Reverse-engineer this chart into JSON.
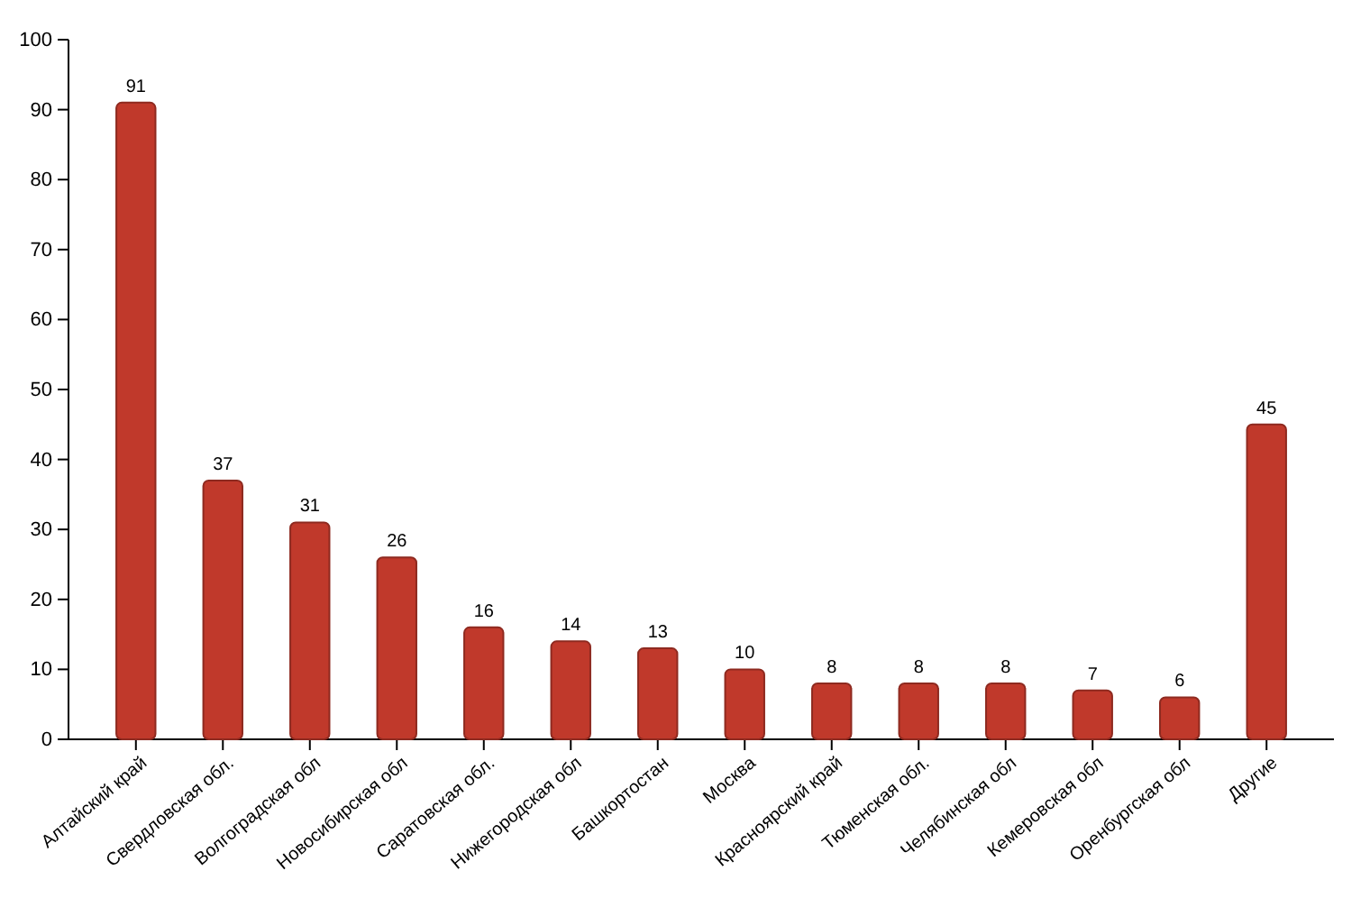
{
  "chart_data": {
    "type": "bar",
    "categories": [
      "Алтайский край",
      "Свердловская обл.",
      "Волгоградская обл",
      "Новосибирская обл",
      "Саратовская обл.",
      "Нижегородская обл",
      "Башкортостан",
      "Москва",
      "Красноярский край",
      "Тюменская обл.",
      "Челябинская обл",
      "Кемеровская обл",
      "Оренбургская обл",
      "Другие"
    ],
    "values": [
      91,
      37,
      31,
      26,
      16,
      14,
      13,
      10,
      8,
      8,
      8,
      7,
      6,
      45
    ],
    "color": "#c0392b",
    "ylim": [
      0,
      100
    ],
    "yticks": [
      0,
      10,
      20,
      30,
      40,
      50,
      60,
      70,
      80,
      90,
      100
    ],
    "data_labels": true
  }
}
